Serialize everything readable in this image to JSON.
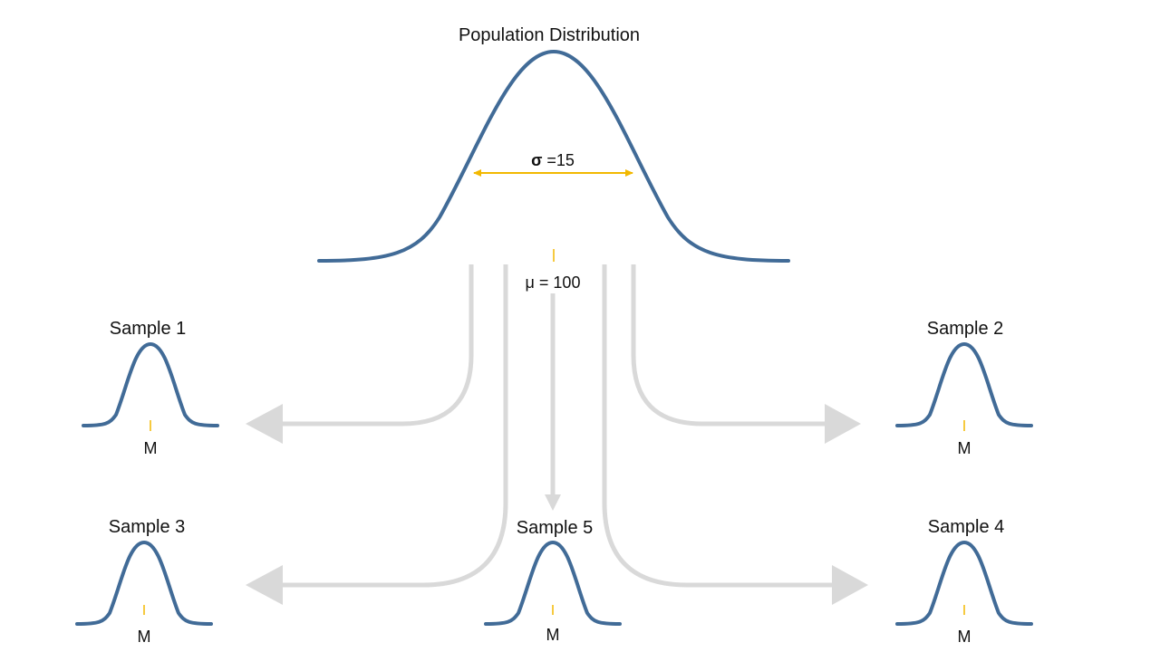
{
  "population": {
    "title": "Population Distribution",
    "sigma_symbol": "σ",
    "sigma_value": " =15",
    "mean_label": "μ = 100"
  },
  "samples": [
    {
      "title": "Sample 1",
      "mean_label": "M"
    },
    {
      "title": "Sample 2",
      "mean_label": "M"
    },
    {
      "title": "Sample 3",
      "mean_label": "M"
    },
    {
      "title": "Sample 4",
      "mean_label": "M"
    },
    {
      "title": "Sample 5",
      "mean_label": "M"
    }
  ],
  "colors": {
    "curve": "#416b97",
    "sigma_arrow": "#f2b800",
    "mean_tick": "#f2b800",
    "flow_arrows": "#d9d9d9"
  }
}
